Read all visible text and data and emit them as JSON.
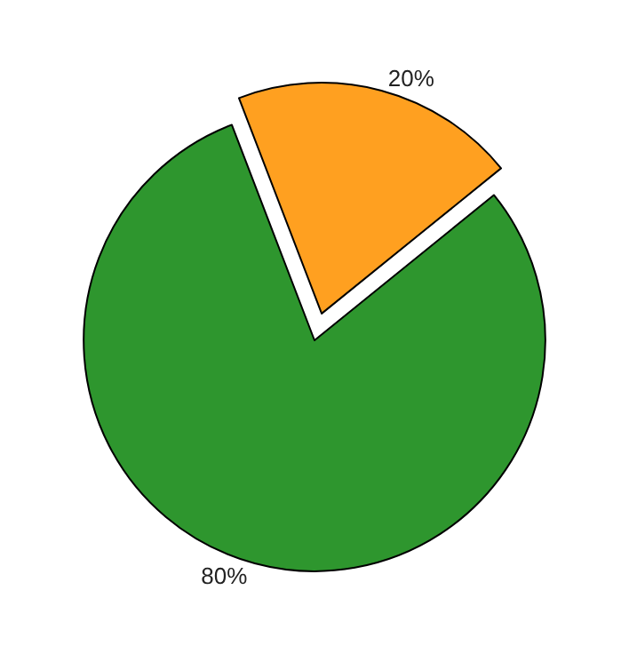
{
  "chart_data": {
    "type": "pie",
    "categories": [
      null,
      null
    ],
    "values": [
      20,
      80
    ],
    "colors": [
      "#ffa020",
      "#2e962e"
    ],
    "value_labels": [
      "20%",
      "80%"
    ],
    "legend": false
  }
}
